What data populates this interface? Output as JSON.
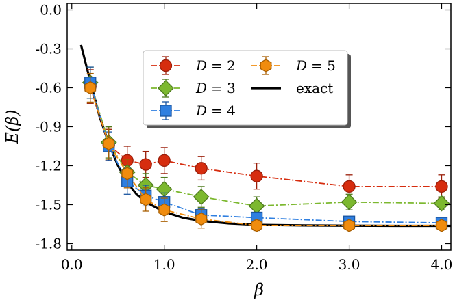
{
  "chart_data": {
    "type": "line",
    "xlabel": "β",
    "ylabel": "E(β)",
    "xlim": [
      -0.05,
      4.1
    ],
    "ylim": [
      -1.85,
      0.05
    ],
    "xticks": [
      0.0,
      1.0,
      2.0,
      3.0,
      4.0
    ],
    "xtick_labels": [
      "0.0",
      "1.0",
      "2.0",
      "3.0",
      "4.0"
    ],
    "yticks": [
      0.0,
      -0.3,
      -0.6,
      -0.9,
      -1.2,
      -1.5,
      -1.8
    ],
    "ytick_labels": [
      "0.0",
      "-0.3",
      "-0.6",
      "-0.9",
      "-1.2",
      "-1.5",
      "-1.8"
    ],
    "legend_position": "upper-center",
    "series": [
      {
        "name": "D = 2",
        "legend_var": "D",
        "legend_value": "= 2",
        "color": "#d62d0f",
        "edge": "#9a1e0a",
        "marker": "circle",
        "x": [
          0.2,
          0.4,
          0.6,
          0.8,
          1.0,
          1.4,
          2.0,
          3.0,
          4.0
        ],
        "y": [
          -0.59,
          -1.04,
          -1.16,
          -1.19,
          -1.16,
          -1.22,
          -1.28,
          -1.36,
          -1.36
        ],
        "err": [
          0.13,
          0.12,
          0.11,
          0.1,
          0.1,
          0.09,
          0.1,
          0.09,
          0.09
        ]
      },
      {
        "name": "D = 3",
        "legend_var": "D",
        "legend_value": "= 3",
        "color": "#7cb82f",
        "edge": "#4e7a1e",
        "marker": "diamond",
        "x": [
          0.2,
          0.4,
          0.6,
          0.8,
          1.0,
          1.4,
          2.0,
          3.0,
          4.0
        ],
        "y": [
          -0.56,
          -1.02,
          -1.25,
          -1.35,
          -1.38,
          -1.44,
          -1.51,
          -1.48,
          -1.49
        ],
        "err": [
          0.12,
          0.12,
          0.1,
          0.09,
          0.09,
          0.08,
          0.07,
          0.06,
          0.05
        ]
      },
      {
        "name": "D = 4",
        "legend_var": "D",
        "legend_value": "= 4",
        "color": "#2f7fe0",
        "edge": "#1a55a0",
        "marker": "square",
        "x": [
          0.2,
          0.4,
          0.6,
          0.8,
          1.0,
          1.4,
          2.0,
          3.0,
          4.0
        ],
        "y": [
          -0.56,
          -1.05,
          -1.32,
          -1.43,
          -1.48,
          -1.58,
          -1.6,
          -1.63,
          -1.64
        ],
        "err": [
          0.12,
          0.11,
          0.1,
          0.08,
          0.07,
          0.05,
          0.04,
          0.03,
          0.03
        ]
      },
      {
        "name": "D = 5",
        "legend_var": "D",
        "legend_value": "= 5",
        "color": "#f08c0e",
        "edge": "#a85e00",
        "marker": "hexagon",
        "x": [
          0.2,
          0.4,
          0.6,
          0.8,
          1.0,
          1.4,
          2.0,
          3.0,
          4.0
        ],
        "y": [
          -0.6,
          -1.03,
          -1.26,
          -1.46,
          -1.54,
          -1.61,
          -1.66,
          -1.66,
          -1.66
        ],
        "err": [
          0.11,
          0.12,
          0.11,
          0.09,
          0.09,
          0.07,
          0.04,
          0.03,
          0.03
        ]
      },
      {
        "name": "exact",
        "legend_var": "",
        "legend_value": "exact",
        "color": "#000000",
        "marker": "none",
        "x": [
          0.1,
          0.15,
          0.2,
          0.3,
          0.4,
          0.5,
          0.6,
          0.7,
          0.8,
          1.0,
          1.2,
          1.4,
          1.7,
          2.0,
          2.5,
          3.0,
          3.5,
          4.1
        ],
        "y": [
          -0.27,
          -0.41,
          -0.55,
          -0.82,
          -1.03,
          -1.2,
          -1.33,
          -1.42,
          -1.48,
          -1.555,
          -1.6,
          -1.625,
          -1.645,
          -1.655,
          -1.66,
          -1.662,
          -1.663,
          -1.663
        ]
      }
    ]
  }
}
